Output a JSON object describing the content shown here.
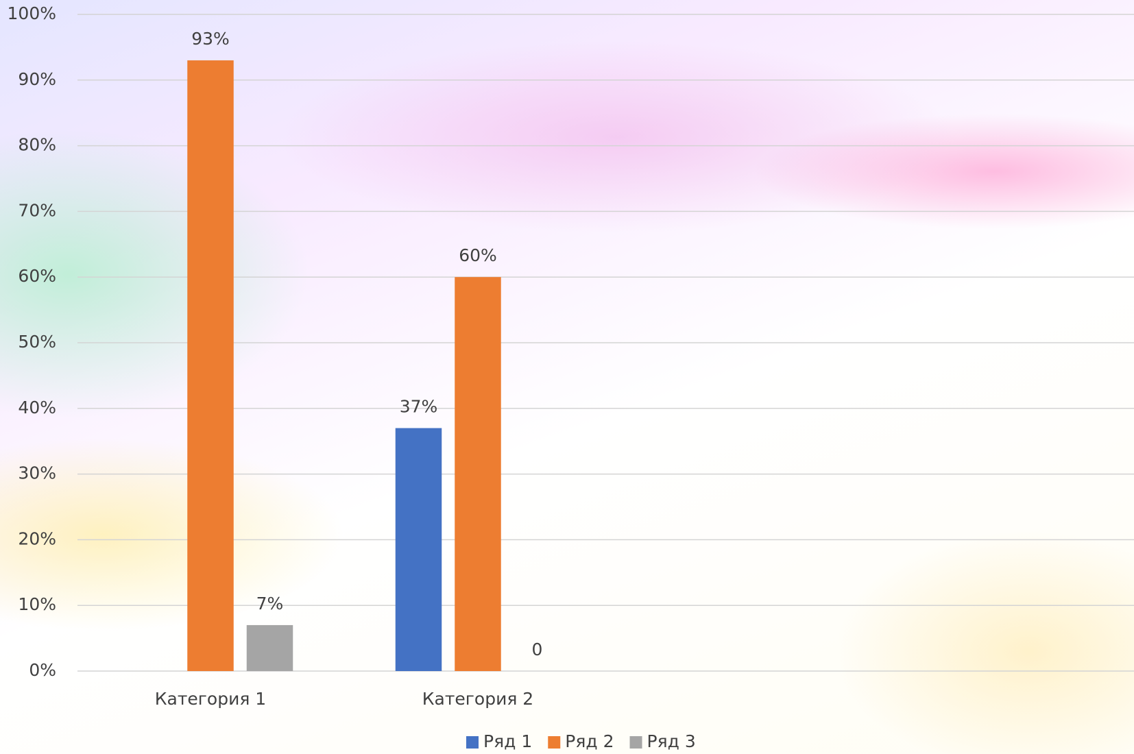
{
  "chart_data": {
    "type": "bar",
    "categories": [
      "Категория 1",
      "Категория 2"
    ],
    "series": [
      {
        "name": "Ряд 1",
        "color": "#4472c4",
        "values": [
          null,
          37
        ],
        "value_labels": [
          null,
          "37%"
        ]
      },
      {
        "name": "Ряд 2",
        "color": "#ed7d31",
        "values": [
          93,
          60
        ],
        "value_labels": [
          "93%",
          "60%"
        ]
      },
      {
        "name": "Ряд 3",
        "color": "#a5a5a5",
        "values": [
          7,
          0
        ],
        "value_labels": [
          "7%",
          "0"
        ]
      }
    ],
    "ylim": [
      0,
      100
    ],
    "yticks": [
      {
        "value": 0,
        "label": "0%"
      },
      {
        "value": 10,
        "label": "10%"
      },
      {
        "value": 20,
        "label": "20%"
      },
      {
        "value": 30,
        "label": "30%"
      },
      {
        "value": 40,
        "label": "40%"
      },
      {
        "value": 50,
        "label": "50%"
      },
      {
        "value": 60,
        "label": "60%"
      },
      {
        "value": 70,
        "label": "70%"
      },
      {
        "value": 80,
        "label": "80%"
      },
      {
        "value": 90,
        "label": "90%"
      },
      {
        "value": 100,
        "label": "100%"
      }
    ],
    "grid": true,
    "legend": "bottom"
  }
}
